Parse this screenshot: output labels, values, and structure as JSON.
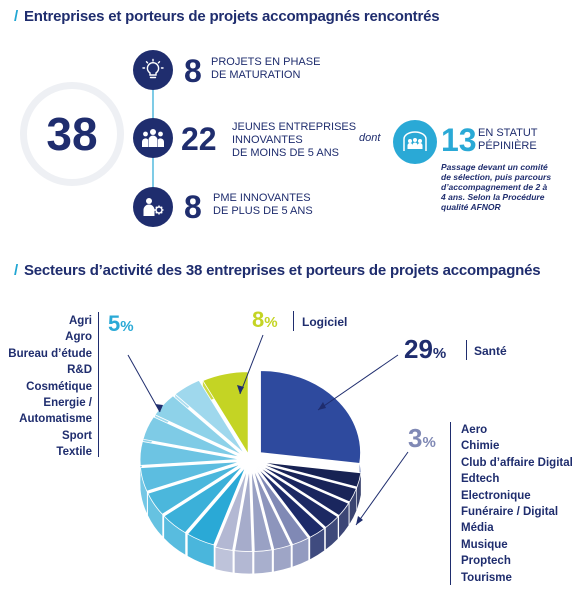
{
  "section1": {
    "title": "Entreprises et porteurs de projets accompagnés rencontrés",
    "total": "38",
    "rows": [
      {
        "value": "8",
        "lines": [
          "PROJETS EN PHASE",
          "DE MATURATION"
        ],
        "icon": "lightbulb-icon"
      },
      {
        "value": "22",
        "lines": [
          "JEUNES ENTREPRISES",
          "INNOVANTES",
          "DE MOINS DE 5 ANS"
        ],
        "icon": "people-group-icon"
      },
      {
        "value": "8",
        "lines": [
          "PME INNOVANTES",
          "DE PLUS DE 5 ANS"
        ],
        "icon": "person-gear-icon"
      }
    ],
    "dont": "dont",
    "pepiniere": {
      "value": "13",
      "lines": [
        "EN STATUT",
        "PÉPINIÈRE"
      ],
      "icon": "building-people-icon",
      "note": [
        "Passage devant un comité",
        "de sélection, puis parcours",
        "d’accompagnement de 2 à",
        "4 ans. Selon la Procédure",
        "qualité AFNOR"
      ]
    }
  },
  "section2": {
    "title": "Secteurs d’activité des 38 entreprises et porteurs de projets accompagnés"
  },
  "chart_data": {
    "type": "pie",
    "title": "Secteurs d’activité des 38 entreprises et porteurs de projets accompagnés",
    "unit": "%",
    "groups": [
      {
        "value": 29,
        "pct": "29",
        "sym": "%",
        "color": "#2e4a9e",
        "labels": [
          "Santé"
        ]
      },
      {
        "value": 3,
        "pct": "3",
        "sym": "%",
        "color": "#8089b5",
        "labels": [
          "Aero",
          "Chimie",
          "Club d’affaire Digital",
          "Edtech",
          "Electronique",
          "Funéraire / Digital",
          "Média",
          "Musique",
          "Proptech",
          "Tourisme"
        ]
      },
      {
        "value": 5,
        "pct": "5",
        "sym": "%",
        "color": "#2aa9d6",
        "labels": [
          "Agri",
          "Agro",
          "Bureau d’étude",
          "R&D",
          "Cosmétique",
          "Energie / Automatisme",
          "Sport",
          "Textile"
        ]
      },
      {
        "value": 8,
        "pct": "8",
        "sym": "%",
        "color": "#c4d424",
        "labels": [
          "Logiciel"
        ]
      }
    ],
    "colors": {
      "navy": "#1f2d6e",
      "teal": "#2aa9d6",
      "lime": "#c4d424",
      "lavender": "#8089b5",
      "royal": "#2e4a9e"
    }
  }
}
